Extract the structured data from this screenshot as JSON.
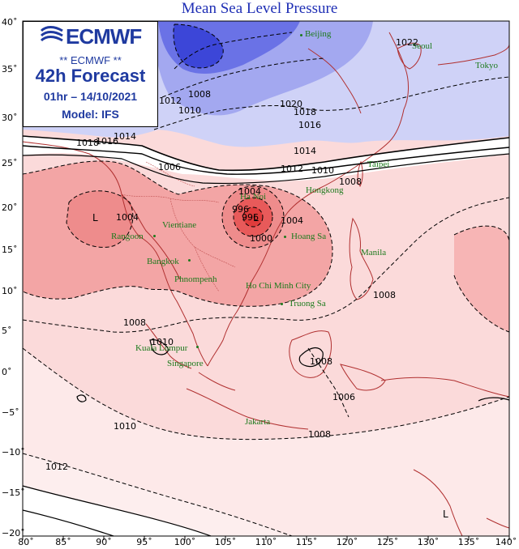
{
  "title": "Mean Sea Level Pressure",
  "infobox": {
    "logo_text": "ECMWF",
    "subtitle": "** ECMWF **",
    "forecast": "42h Forecast",
    "datetime": "01hr – 14/10/2021",
    "model": "Model: IFS"
  },
  "axes": {
    "lat_labels": [
      "40˚",
      "35˚",
      "30˚",
      "25˚",
      "20˚",
      "15˚",
      "10˚",
      "5˚",
      "0˚",
      "−5˚",
      "−10˚",
      "−15˚",
      "−20˚"
    ],
    "lon_labels": [
      "80˚",
      "85˚",
      "90˚",
      "95˚",
      "100˚",
      "105˚",
      "110˚",
      "115˚",
      "120˚",
      "125˚",
      "130˚",
      "135˚",
      "140˚"
    ]
  },
  "cities": [
    {
      "name": "Beijing"
    },
    {
      "name": "Seoul"
    },
    {
      "name": "Tokyo"
    },
    {
      "name": "Taipei"
    },
    {
      "name": "Hongkong"
    },
    {
      "name": "Ha Noi"
    },
    {
      "name": "Vientiane"
    },
    {
      "name": "Rangoon"
    },
    {
      "name": "Bangkok"
    },
    {
      "name": "Hoang Sa"
    },
    {
      "name": "Manila"
    },
    {
      "name": "Phnompenh"
    },
    {
      "name": "Ho Chi Minh City"
    },
    {
      "name": "Truong Sa"
    },
    {
      "name": "Kuala Lumpur"
    },
    {
      "name": "Singapore"
    },
    {
      "name": "Jakarta"
    }
  ],
  "isobar_labels": [
    "1020",
    "1018",
    "1016",
    "1014",
    "1012",
    "1010",
    "1008",
    "1006",
    "1004",
    "1000",
    "996",
    "1022",
    "1010",
    "1008",
    "1010",
    "1008",
    "1012",
    "1016",
    "1018",
    "1014",
    "1004",
    "1004",
    "1008",
    "1008",
    "1006",
    "1008",
    "1010",
    "1012",
    "996"
  ],
  "low_markers": [
    "L",
    "L",
    "L"
  ],
  "colors": {
    "title": "#1f2fb5",
    "city": "#1c7a1c",
    "coast": "#b03030",
    "high_blue_dark": "#2f3ad6",
    "high_blue": "#8a90ee",
    "high_blue_light": "#c9ccf7",
    "low_red_dark": "#e84e4e",
    "low_red": "#f08a8a",
    "low_red_light": "#f7b5b5",
    "low_pink": "#fbdede"
  }
}
